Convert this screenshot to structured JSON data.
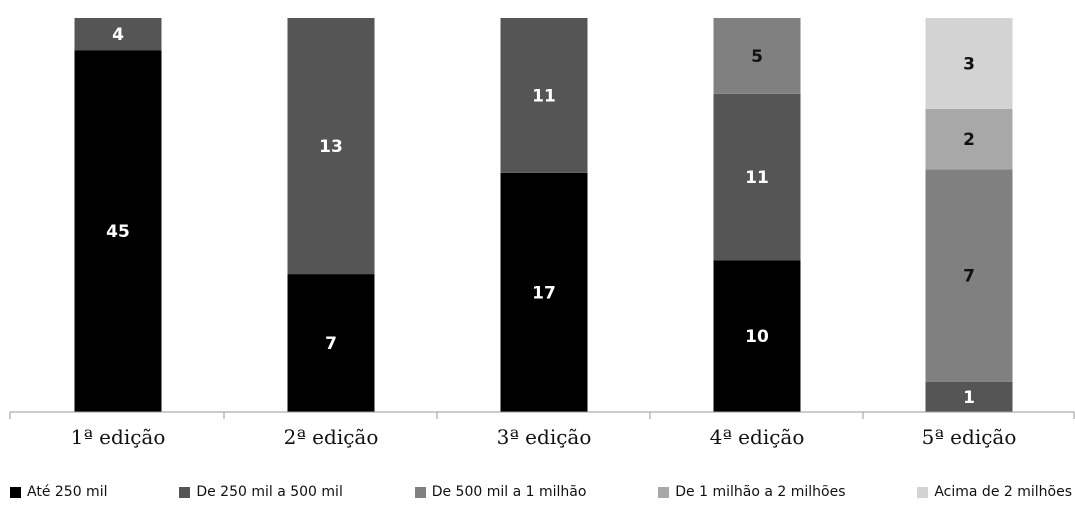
{
  "chart_data": {
    "type": "bar",
    "stacked": true,
    "categories": [
      "1ª edição",
      "2ª edição",
      "3ª edição",
      "4ª edição",
      "5ª edição"
    ],
    "series": [
      {
        "name": "Até 250 mil",
        "color": "#000000",
        "label_color": "#ffffff",
        "values": [
          45,
          7,
          17,
          10,
          0
        ]
      },
      {
        "name": "De 250 mil a 500 mil",
        "color": "#555555",
        "label_color": "#ffffff",
        "values": [
          4,
          13,
          11,
          11,
          1
        ]
      },
      {
        "name": "De 500 mil a 1 milhão",
        "color": "#808080",
        "label_color": "#111111",
        "values": [
          0,
          0,
          0,
          5,
          7
        ]
      },
      {
        "name": "De 1 milhão a 2 milhões",
        "color": "#a8a8a8",
        "label_color": "#111111",
        "values": [
          0,
          0,
          0,
          0,
          2
        ]
      },
      {
        "name": "Acima de 2 milhões",
        "color": "#d3d3d3",
        "label_color": "#111111",
        "values": [
          0,
          0,
          0,
          0,
          3
        ]
      }
    ],
    "normalized": true,
    "legend_position": "bottom",
    "grid": false
  }
}
